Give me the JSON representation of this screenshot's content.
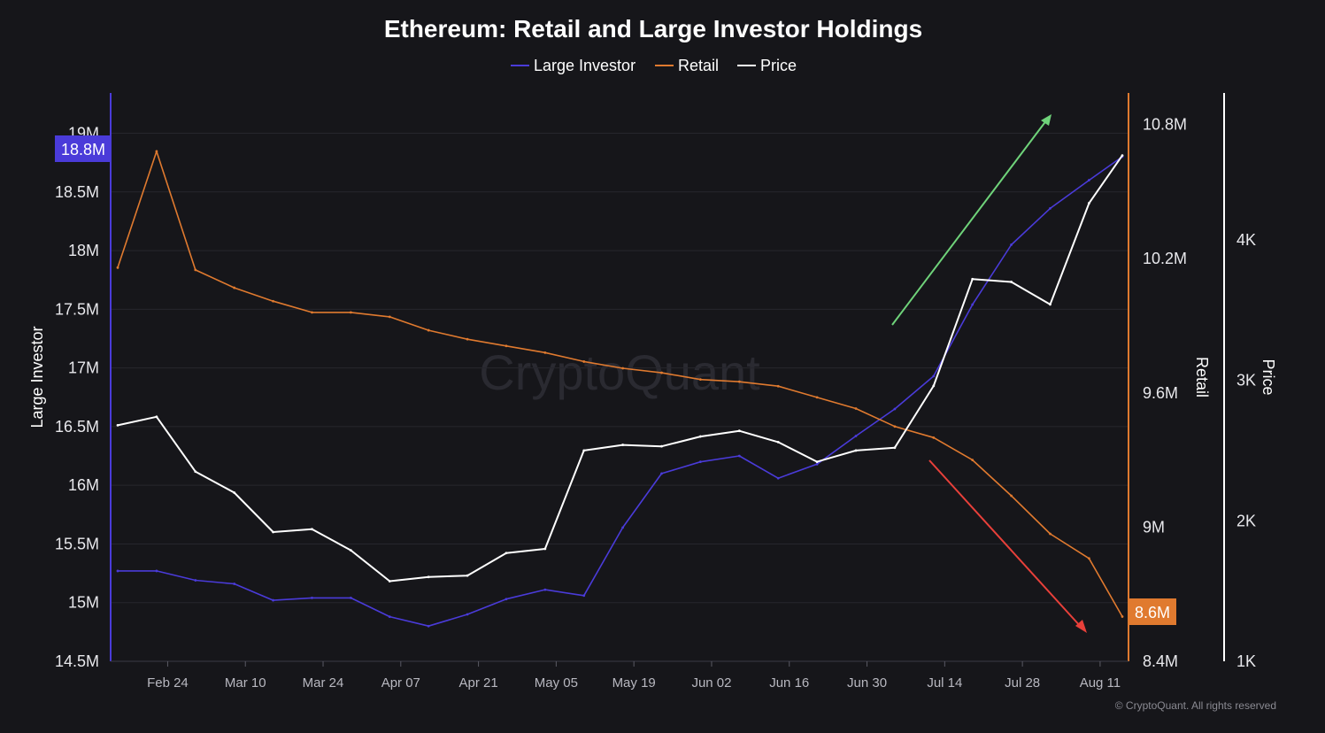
{
  "chart_data": {
    "type": "line",
    "title": "Ethereum: Retail and Large Investor Holdings",
    "legend": [
      "Large Investor",
      "Retail",
      "Price"
    ],
    "legend_position": "top-center",
    "x_ticks": [
      "Feb 24",
      "Mar 10",
      "Mar 24",
      "Apr 07",
      "Apr 21",
      "May 05",
      "May 19",
      "Jun 02",
      "Jun 16",
      "Jun 30",
      "Jul 14",
      "Jul 28",
      "Aug 11"
    ],
    "x_range": [
      "Feb 15",
      "Aug 15"
    ],
    "grid": true,
    "watermark": "CryptoQuant",
    "copyright": "© CryptoQuant. All rights reserved",
    "annotations": [
      {
        "label": "up-arrow",
        "color": "#6fd37a"
      },
      {
        "label": "down-arrow",
        "color": "#e8403a"
      }
    ],
    "axes": {
      "left": {
        "label": "Large Investor",
        "ticks": [
          "19M",
          "18.5M",
          "18M",
          "17.5M",
          "17M",
          "16.5M",
          "16M",
          "15.5M",
          "15M",
          "14.5M"
        ],
        "range": [
          14500000,
          19170000
        ],
        "badge": "18.8M",
        "badge_color": "#4a3bd9"
      },
      "right1": {
        "label": "Retail",
        "ticks": [
          "10.8M",
          "10.2M",
          "9.6M",
          "9M",
          "8.4M"
        ],
        "range": [
          8400000,
          10850000
        ],
        "badge": "8.6M",
        "badge_color": "#e07a2f"
      },
      "right2": {
        "label": "Price",
        "ticks": [
          "4K",
          "3K",
          "2K",
          "1K"
        ],
        "range": [
          1000,
          4900
        ]
      }
    },
    "x_dates": [
      "Feb 15",
      "Feb 22",
      "Mar 01",
      "Mar 08",
      "Mar 15",
      "Mar 22",
      "Mar 29",
      "Apr 05",
      "Apr 12",
      "Apr 19",
      "Apr 26",
      "May 03",
      "May 10",
      "May 17",
      "May 24",
      "May 31",
      "Jun 07",
      "Jun 14",
      "Jun 21",
      "Jun 28",
      "Jul 05",
      "Jul 12",
      "Jul 19",
      "Jul 26",
      "Aug 02",
      "Aug 09",
      "Aug 15"
    ],
    "series": [
      {
        "name": "Large Investor",
        "color": "#4a3bd9",
        "values": [
          15270000,
          15270000,
          15190000,
          15160000,
          15020000,
          15040000,
          15040000,
          14880000,
          14800000,
          14900000,
          15030000,
          15110000,
          15060000,
          15640000,
          16100000,
          16200000,
          16250000,
          16060000,
          16180000,
          16420000,
          16650000,
          16930000,
          17540000,
          18050000,
          18360000,
          18600000,
          18800000
        ]
      },
      {
        "name": "Retail",
        "color": "#e07a2f",
        "values": [
          10160000,
          10680000,
          10150000,
          10070000,
          10010000,
          9960000,
          9960000,
          9940000,
          9880000,
          9840000,
          9810000,
          9780000,
          9740000,
          9710000,
          9690000,
          9660000,
          9650000,
          9630000,
          9580000,
          9530000,
          9450000,
          9400000,
          9300000,
          9140000,
          8970000,
          8860000,
          8600000
        ]
      },
      {
        "name": "Price",
        "color": "#ffffff",
        "values": [
          2680,
          2740,
          2350,
          2200,
          1920,
          1940,
          1790,
          1570,
          1600,
          1610,
          1770,
          1800,
          2500,
          2540,
          2530,
          2600,
          2640,
          2560,
          2420,
          2500,
          2520,
          2960,
          3720,
          3700,
          3540,
          4260,
          4600
        ]
      }
    ]
  }
}
